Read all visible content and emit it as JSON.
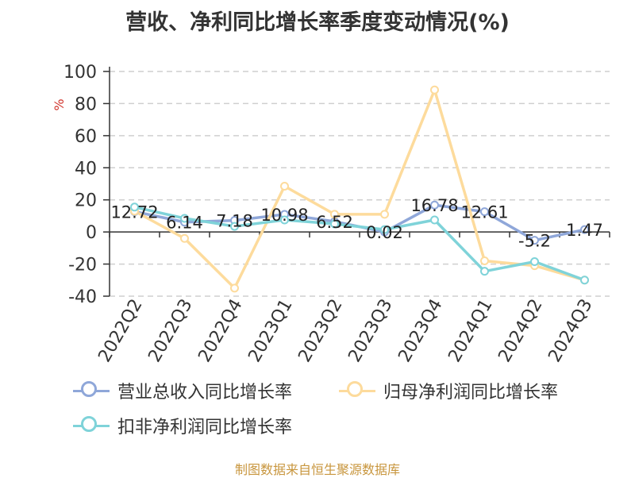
{
  "title": "营收、净利同比增长率季度变动情况(%)",
  "source": "制图数据来自恒生聚源数据库",
  "chart_data": {
    "type": "line",
    "ylabel": "%",
    "ylim": [
      -40,
      100
    ],
    "yticks": [
      100,
      80,
      60,
      40,
      20,
      0,
      -20,
      -40
    ],
    "grid": true,
    "legend_position": "bottom",
    "categories": [
      "2022Q2",
      "2022Q3",
      "2022Q4",
      "2023Q1",
      "2023Q2",
      "2023Q3",
      "2023Q4",
      "2024Q1",
      "2024Q2",
      "2024Q3"
    ],
    "series": [
      {
        "name": "营业总收入同比增长率",
        "color": "#8fa7d9",
        "values": [
          12.72,
          6.14,
          7.18,
          10.98,
          6.52,
          0.02,
          16.78,
          12.61,
          -5.2,
          1.47
        ],
        "labels_shown": true
      },
      {
        "name": "归母净利润同比增长率",
        "color": "#fddb9c",
        "values": [
          13,
          -4,
          -35,
          28.5,
          11,
          11,
          88.5,
          -18,
          -21,
          -30
        ],
        "labels_shown": false
      },
      {
        "name": "扣非净利润同比增长率",
        "color": "#7fd3d9",
        "values": [
          15.5,
          8.5,
          3.5,
          7.5,
          5,
          1.5,
          7.5,
          -24.5,
          -18.5,
          -30
        ],
        "labels_shown": false
      }
    ],
    "data_labels": [
      "12.72",
      "6.14",
      "7.18",
      "10.98",
      "6.52",
      "0.02",
      "16.78",
      "12.61",
      "-5.2",
      "1.47"
    ]
  }
}
